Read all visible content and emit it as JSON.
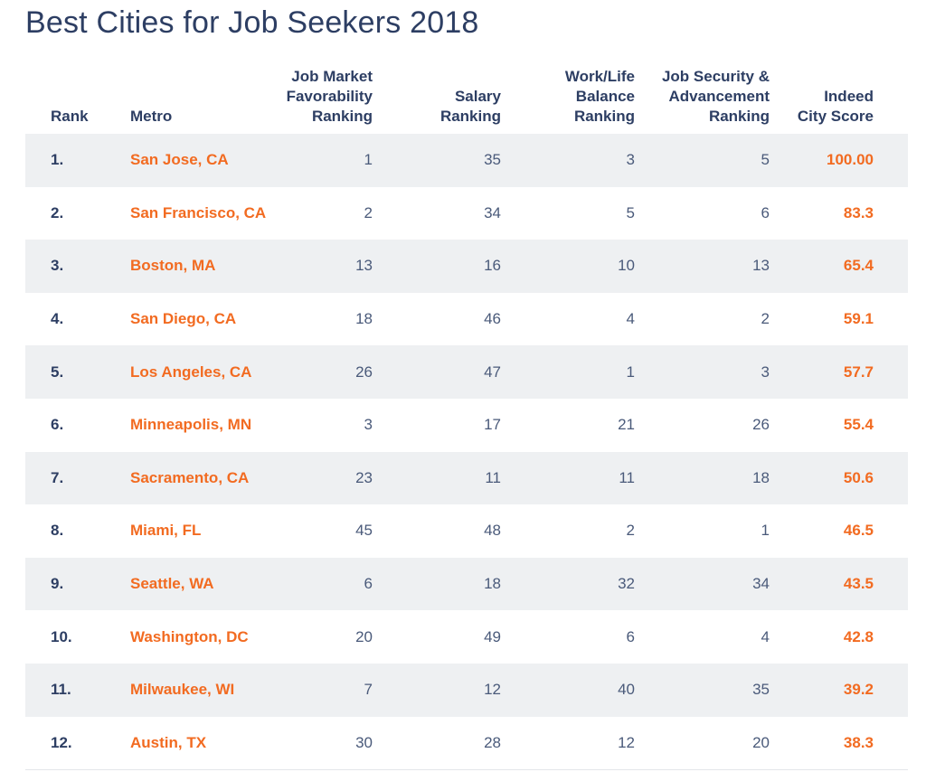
{
  "title": "Best Cities for Job Seekers 2018",
  "headers": {
    "rank": "Rank",
    "metro": "Metro",
    "job_market": [
      "Job Market",
      "Favorability",
      "Ranking"
    ],
    "salary": [
      "Salary",
      "Ranking"
    ],
    "work_life": [
      "Work/Life",
      "Balance",
      "Ranking"
    ],
    "job_security": [
      "Job Security &",
      "Advancement",
      "Ranking"
    ],
    "score": [
      "Indeed",
      "City Score"
    ]
  },
  "colors": {
    "title": "#2d3e63",
    "header": "#2d3e63",
    "accent": "#f26b21",
    "row_shade": "#eef0f2"
  },
  "chart_data": {
    "type": "table",
    "title": "Best Cities for Job Seekers 2018",
    "columns": [
      "Rank",
      "Metro",
      "Job Market Favorability Ranking",
      "Salary Ranking",
      "Work/Life Balance Ranking",
      "Job Security & Advancement Ranking",
      "Indeed City Score"
    ],
    "rows": [
      {
        "rank": "1.",
        "metro": "San Jose, CA",
        "job_market": "1",
        "salary": "35",
        "work_life": "3",
        "job_security": "5",
        "score": "100.00"
      },
      {
        "rank": "2.",
        "metro": "San Francisco, CA",
        "job_market": "2",
        "salary": "34",
        "work_life": "5",
        "job_security": "6",
        "score": "83.3"
      },
      {
        "rank": "3.",
        "metro": "Boston, MA",
        "job_market": "13",
        "salary": "16",
        "work_life": "10",
        "job_security": "13",
        "score": "65.4"
      },
      {
        "rank": "4.",
        "metro": "San Diego, CA",
        "job_market": "18",
        "salary": "46",
        "work_life": "4",
        "job_security": "2",
        "score": "59.1"
      },
      {
        "rank": "5.",
        "metro": "Los Angeles, CA",
        "job_market": "26",
        "salary": "47",
        "work_life": "1",
        "job_security": "3",
        "score": "57.7"
      },
      {
        "rank": "6.",
        "metro": "Minneapolis, MN",
        "job_market": "3",
        "salary": "17",
        "work_life": "21",
        "job_security": "26",
        "score": "55.4"
      },
      {
        "rank": "7.",
        "metro": "Sacramento, CA",
        "job_market": "23",
        "salary": "11",
        "work_life": "11",
        "job_security": "18",
        "score": "50.6"
      },
      {
        "rank": "8.",
        "metro": "Miami, FL",
        "job_market": "45",
        "salary": "48",
        "work_life": "2",
        "job_security": "1",
        "score": "46.5"
      },
      {
        "rank": "9.",
        "metro": "Seattle, WA",
        "job_market": "6",
        "salary": "18",
        "work_life": "32",
        "job_security": "34",
        "score": "43.5"
      },
      {
        "rank": "10.",
        "metro": "Washington, DC",
        "job_market": "20",
        "salary": "49",
        "work_life": "6",
        "job_security": "4",
        "score": "42.8"
      },
      {
        "rank": "11.",
        "metro": "Milwaukee, WI",
        "job_market": "7",
        "salary": "12",
        "work_life": "40",
        "job_security": "35",
        "score": "39.2"
      },
      {
        "rank": "12.",
        "metro": "Austin, TX",
        "job_market": "30",
        "salary": "28",
        "work_life": "12",
        "job_security": "20",
        "score": "38.3"
      }
    ]
  }
}
